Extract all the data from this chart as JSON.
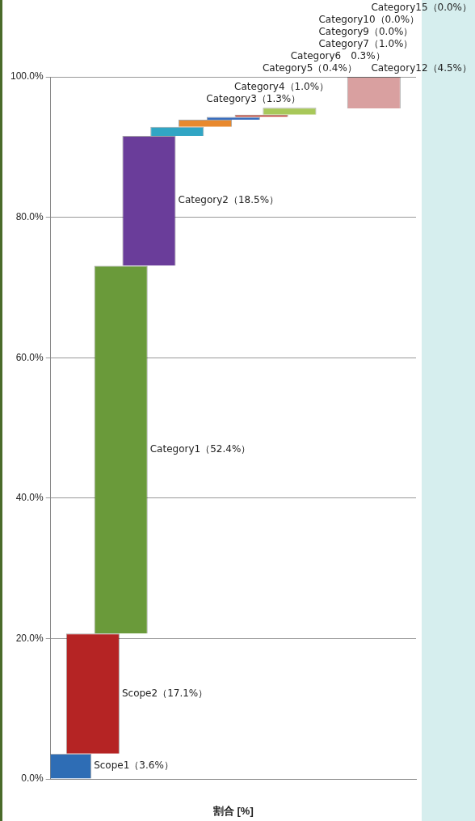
{
  "chart_data": {
    "type": "bar",
    "xlabel": "割合 [%]",
    "categories": [
      null,
      null,
      null,
      null,
      null,
      null,
      null,
      null,
      null,
      null,
      null,
      null,
      null
    ],
    "values": [
      3.6,
      17.1,
      52.4,
      18.5,
      1.3,
      1.0,
      0.4,
      0.3,
      1.0,
      0.0,
      0.0,
      4.5,
      0.0
    ],
    "base": [
      0,
      3.6,
      20.7,
      73.1,
      91.6,
      92.9,
      93.9,
      94.3,
      94.6,
      null,
      null,
      95.5,
      null
    ],
    "colors": [
      "#2e6db5",
      "#b52424",
      "#6a9a3a",
      "#6a3d9a",
      "#31a5c4",
      "#e8892e",
      "#3a6fbf",
      "#c0392b",
      "#a8c85a",
      "#888888",
      "#888888",
      "#d9a0a0",
      "#888888"
    ],
    "annotations": [
      "Scope1（3.6%）",
      "Scope2（17.1%）",
      "Category1（52.4%）",
      "Category2（18.5%）",
      "Category3（1.3%）",
      "Category4（1.0%）",
      "Category5（0.4%）",
      "Category6　0.3%）",
      "Category7（1.0%）",
      "Category9（0.0%）",
      "Category10（0.0%）",
      "Category12（4.5%）",
      "Category15（0.0%）"
    ],
    "ylim": [
      0,
      100
    ],
    "yticks": [
      {
        "value": 0,
        "label": "0.0%"
      },
      {
        "value": 20,
        "label": "20.0%"
      },
      {
        "value": 40,
        "label": "40.0%"
      },
      {
        "value": 60,
        "label": "60.0%"
      },
      {
        "value": 80,
        "label": "80.0%"
      },
      {
        "value": 100,
        "label": "100.0%"
      }
    ],
    "grid": "y",
    "legend": false
  }
}
